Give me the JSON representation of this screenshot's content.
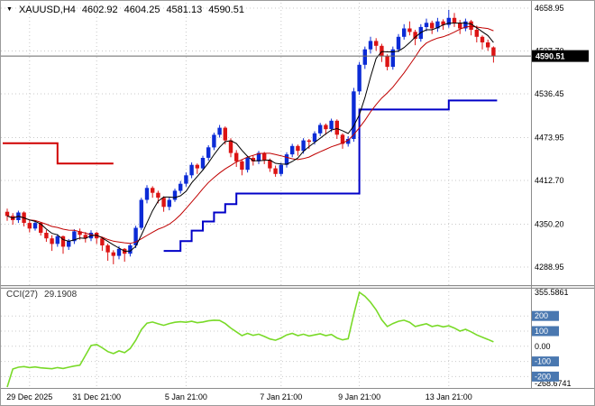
{
  "symbol_bar": {
    "symbol": "XAUUSD,H4",
    "open": "4602.92",
    "high": "4604.25",
    "low": "4581.13",
    "close": "4590.51"
  },
  "colors": {
    "bull": "#0B2BD6",
    "bear": "#DC1414",
    "trend_up": "#0000C8",
    "trend_down": "#D00000",
    "ma_fast": "#000000",
    "ma_slow": "#C00000",
    "cci_line": "#79DA28",
    "bid_line": "#666666",
    "grid": "#C9C9C9",
    "price_badge_bg": "#000000",
    "level_badge_bg": "#4A78B0",
    "axis_text": "#000000",
    "chrome": "#8C8C8C"
  },
  "chart_data": [
    {
      "type": "candlestick",
      "title": "XAUUSD,H4",
      "current_price": "4590.51",
      "y_axis_labels": [
        4658.95,
        4597.7,
        4536.45,
        4473.95,
        4412.7,
        4350.2,
        4288.95
      ],
      "x_axis_ticks": [
        {
          "index": 4,
          "label": "29 Dec 2025"
        },
        {
          "index": 16,
          "label": "31 Dec 21:00"
        },
        {
          "index": 32,
          "label": "5 Jan 21:00"
        },
        {
          "index": 49,
          "label": "7 Jan 21:00"
        },
        {
          "index": 63,
          "label": "9 Jan 21:00"
        },
        {
          "index": 79,
          "label": "13 Jan 21:00"
        }
      ],
      "candles": [
        [
          4368,
          4372.5,
          4355,
          4362
        ],
        [
          4362,
          4366,
          4349.5,
          4356
        ],
        [
          4356,
          4369.5,
          4352,
          4367
        ],
        [
          4367,
          4368.5,
          4347,
          4352
        ],
        [
          4352,
          4356,
          4338.5,
          4344
        ],
        [
          4344,
          4355.5,
          4341,
          4352
        ],
        [
          4352,
          4353,
          4334,
          4338
        ],
        [
          4338,
          4342,
          4325,
          4330
        ],
        [
          4330,
          4334.5,
          4312,
          4322
        ],
        [
          4322,
          4336,
          4318,
          4333
        ],
        [
          4333,
          4334,
          4308,
          4318
        ],
        [
          4318,
          4329,
          4313.5,
          4326
        ],
        [
          4326,
          4343,
          4322,
          4340
        ],
        [
          4340,
          4344,
          4328,
          4335
        ],
        [
          4335,
          4339,
          4324,
          4330
        ],
        [
          4330,
          4341.5,
          4326,
          4338
        ],
        [
          4338,
          4339.5,
          4322,
          4330
        ],
        [
          4330,
          4332,
          4312,
          4320
        ],
        [
          4320,
          4322.5,
          4298,
          4310
        ],
        [
          4310,
          4313,
          4293,
          4305
        ],
        [
          4305,
          4319,
          4300,
          4315
        ],
        [
          4315,
          4316,
          4296.5,
          4308
        ],
        [
          4308,
          4323,
          4304,
          4320
        ],
        [
          4320,
          4348,
          4316,
          4345
        ],
        [
          4345,
          4388,
          4342,
          4385
        ],
        [
          4385,
          4406,
          4380,
          4402
        ],
        [
          4402,
          4404.5,
          4388,
          4395
        ],
        [
          4395,
          4398,
          4380,
          4388
        ],
        [
          4388,
          4390,
          4368,
          4375
        ],
        [
          4375,
          4388.5,
          4370,
          4385
        ],
        [
          4385,
          4401,
          4382,
          4398
        ],
        [
          4398,
          4412,
          4394,
          4408
        ],
        [
          4408,
          4424,
          4404,
          4420
        ],
        [
          4420,
          4438.5,
          4416,
          4435
        ],
        [
          4435,
          4437,
          4422,
          4430
        ],
        [
          4430,
          4448,
          4427,
          4445
        ],
        [
          4445,
          4463,
          4441,
          4460
        ],
        [
          4460,
          4481,
          4456,
          4478
        ],
        [
          4478,
          4492,
          4474,
          4488
        ],
        [
          4488,
          4490,
          4464,
          4470
        ],
        [
          4470,
          4473,
          4446,
          4452
        ],
        [
          4452,
          4456,
          4432,
          4440
        ],
        [
          4440,
          4443,
          4420,
          4428
        ],
        [
          4428,
          4448,
          4424,
          4445
        ],
        [
          4445,
          4449,
          4434,
          4440
        ],
        [
          4440,
          4455,
          4436,
          4452
        ],
        [
          4452,
          4453.5,
          4436,
          4442
        ],
        [
          4442,
          4444,
          4425,
          4430
        ],
        [
          4430,
          4434,
          4418,
          4422
        ],
        [
          4422,
          4438,
          4419,
          4435
        ],
        [
          4435,
          4453,
          4431,
          4450
        ],
        [
          4450,
          4465,
          4446,
          4462
        ],
        [
          4462,
          4464,
          4448,
          4455
        ],
        [
          4455,
          4473,
          4451,
          4470
        ],
        [
          4470,
          4472,
          4458,
          4468
        ],
        [
          4468,
          4483,
          4464,
          4480
        ],
        [
          4480,
          4495,
          4476,
          4492
        ],
        [
          4492,
          4494,
          4478,
          4486
        ],
        [
          4486,
          4501,
          4482,
          4498
        ],
        [
          4498,
          4500,
          4472,
          4478
        ],
        [
          4478,
          4480,
          4458,
          4465
        ],
        [
          4465,
          4476,
          4461,
          4472
        ],
        [
          4472,
          4545,
          4468,
          4540
        ],
        [
          4540,
          4582,
          4535,
          4578
        ],
        [
          4578,
          4604,
          4572,
          4600
        ],
        [
          4600,
          4618,
          4594,
          4612
        ],
        [
          4612,
          4616,
          4598,
          4605
        ],
        [
          4605,
          4608,
          4582,
          4590
        ],
        [
          4590,
          4593,
          4570,
          4575
        ],
        [
          4575,
          4604,
          4571,
          4600
        ],
        [
          4600,
          4622,
          4596,
          4618
        ],
        [
          4618,
          4636,
          4614,
          4630
        ],
        [
          4630,
          4640,
          4620,
          4625
        ],
        [
          4625,
          4628,
          4606,
          4615
        ],
        [
          4615,
          4636,
          4611,
          4632
        ],
        [
          4632,
          4644,
          4626,
          4638
        ],
        [
          4638,
          4641,
          4622,
          4630
        ],
        [
          4630,
          4645,
          4625,
          4640
        ],
        [
          4640,
          4643,
          4628,
          4635
        ],
        [
          4635,
          4656.5,
          4631,
          4645
        ],
        [
          4645,
          4652,
          4632,
          4638
        ],
        [
          4638,
          4642,
          4622,
          4630
        ],
        [
          4630,
          4644,
          4626,
          4640
        ],
        [
          4640,
          4642,
          4620,
          4628
        ],
        [
          4628,
          4634,
          4610,
          4618
        ],
        [
          4618,
          4620,
          4600,
          4610
        ],
        [
          4610,
          4614,
          4598,
          4602.9
        ],
        [
          4602.92,
          4604.25,
          4581.13,
          4590.51
        ]
      ],
      "overlays": {
        "ma_fast_period": 5,
        "ma_slow_period": 13,
        "trend_stop": {
          "red_segments": [
            [
              0,
              9,
              4466
            ],
            [
              9,
              19,
              4437
            ]
          ],
          "blue_segments": [
            [
              28,
              31,
              4312
            ],
            [
              31,
              33,
              4326
            ],
            [
              33,
              35,
              4341
            ],
            [
              35,
              37,
              4354
            ],
            [
              37,
              39,
              4367
            ],
            [
              39,
              41,
              4379
            ],
            [
              41,
              63,
              4394
            ],
            [
              63,
              79,
              4514
            ],
            [
              79,
              87,
              4527
            ]
          ]
        }
      }
    },
    {
      "type": "line",
      "name": "CCI(27)",
      "current_value": "29.1908",
      "levels": [
        200,
        100,
        0,
        -100,
        -200
      ],
      "scale_max": 355.5861,
      "scale_min": -268.6741,
      "values": [
        -268.67,
        -150,
        -138,
        -134,
        -140,
        -136,
        -142,
        -145,
        -148,
        -140,
        -146,
        -138,
        -130,
        -125,
        -60,
        5,
        12,
        -10,
        -35,
        -48,
        -30,
        -42,
        -15,
        40,
        110,
        152,
        160,
        148,
        138,
        150,
        158,
        162,
        158,
        165,
        155,
        160,
        168,
        172,
        170,
        150,
        120,
        95,
        70,
        85,
        72,
        80,
        65,
        48,
        40,
        55,
        75,
        85,
        70,
        80,
        68,
        75,
        82,
        70,
        78,
        55,
        42,
        50,
        210,
        355.5861,
        330,
        290,
        240,
        175,
        130,
        150,
        165,
        172,
        158,
        130,
        140,
        148,
        130,
        138,
        128,
        135,
        120,
        100,
        112,
        95,
        75,
        60,
        45,
        29.1908
      ]
    }
  ]
}
